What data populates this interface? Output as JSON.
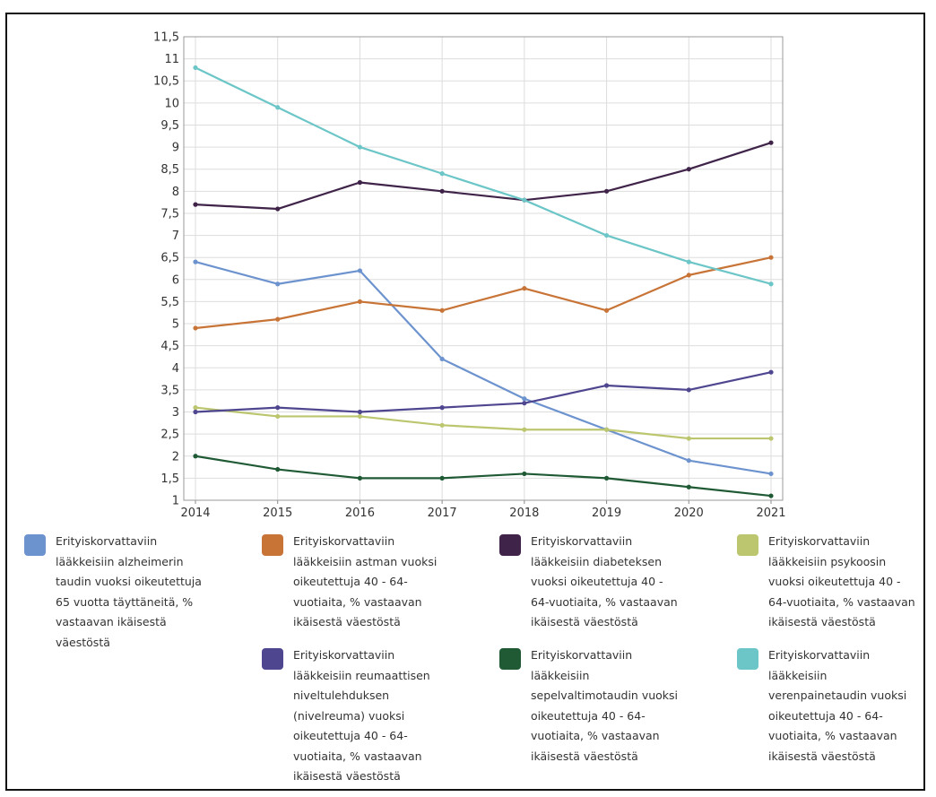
{
  "chart_data": {
    "type": "line",
    "title": "",
    "xlabel": "",
    "ylabel": "",
    "x": [
      "2014",
      "2015",
      "2016",
      "2017",
      "2018",
      "2019",
      "2020",
      "2021"
    ],
    "ylim": [
      1,
      11.5
    ],
    "yticks": [
      "1",
      "1,5",
      "2",
      "2,5",
      "3",
      "3,5",
      "4",
      "4,5",
      "5",
      "5,5",
      "6",
      "6,5",
      "7",
      "7,5",
      "8",
      "8,5",
      "9",
      "9,5",
      "10",
      "10,5",
      "11",
      "11,5"
    ],
    "grid": true,
    "legend_position": "bottom",
    "series": [
      {
        "name": "Erityiskorvattaviin\nlääkkeisiin alzheimerin\ntaudin vuoksi oikeutettuja\n65 vuotta täyttäneitä, %\nvastaavan ikäisestä\nväestöstä",
        "color": "#6d93cf",
        "values": [
          6.4,
          5.9,
          6.2,
          4.2,
          3.3,
          2.6,
          1.9,
          1.6
        ]
      },
      {
        "name": "Erityiskorvattaviin\nlääkkeisiin astman vuoksi\noikeutettuja 40 - 64-\nvuotiaita, % vastaavan\nikäisestä väestöstä",
        "color": "#c87437",
        "values": [
          4.9,
          5.1,
          5.5,
          5.3,
          5.8,
          5.3,
          6.1,
          6.5
        ]
      },
      {
        "name": "Erityiskorvattaviin\nlääkkeisiin diabeteksen\nvuoksi oikeutettuja 40 -\n64-vuotiaita, % vastaavan\nikäisestä väestöstä",
        "color": "#3f2348",
        "values": [
          7.7,
          7.6,
          8.2,
          8.0,
          7.8,
          8.0,
          8.5,
          9.1
        ]
      },
      {
        "name": "Erityiskorvattaviin\nlääkkeisiin psykoosin\nvuoksi oikeutettuja 40 -\n64-vuotiaita, % vastaavan\nikäisestä väestöstä",
        "color": "#bcc66f",
        "values": [
          3.1,
          2.9,
          2.9,
          2.7,
          2.6,
          2.6,
          2.4,
          2.4
        ]
      },
      {
        "name": "Erityiskorvattaviin\nlääkkeisiin reumaattisen\nniveltulehduksen\n(nivelreuma) vuoksi\noikeutettuja 40 - 64-\nvuotiaita, % vastaavan\nikäisestä väestöstä",
        "color": "#4f4690",
        "values": [
          3.0,
          3.1,
          3.0,
          3.1,
          3.2,
          3.6,
          3.5,
          3.9
        ]
      },
      {
        "name": "Erityiskorvattaviin\nlääkkeisiin\nsepelvaltimotaudin vuoksi\noikeutettuja 40 - 64-\nvuotiaita, % vastaavan\nikäisestä väestöstä",
        "color": "#1f5a35",
        "values": [
          2.0,
          1.7,
          1.5,
          1.5,
          1.6,
          1.5,
          1.3,
          1.1
        ]
      },
      {
        "name": "Erityiskorvattaviin\nlääkkeisiin\nverenpainetaudin vuoksi\noikeutettuja 40 - 64-\nvuotiaita, % vastaavan\nikäisestä väestöstä",
        "color": "#6cc6c7",
        "values": [
          10.8,
          9.9,
          9.0,
          8.4,
          7.8,
          7.0,
          6.4,
          5.9
        ]
      }
    ]
  }
}
